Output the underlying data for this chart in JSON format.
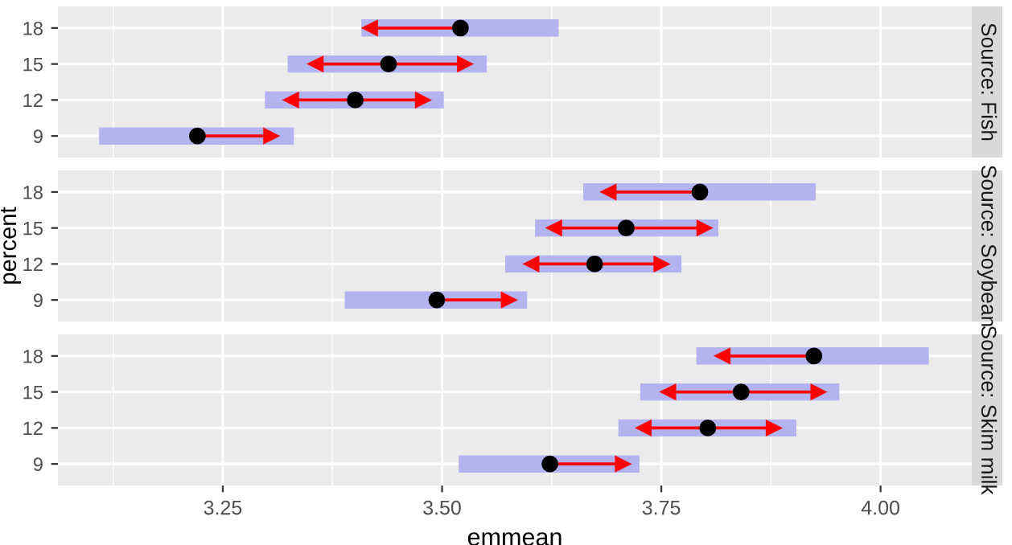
{
  "chart_data": [
    {
      "type": "bar",
      "orientation": "horizontal",
      "title": "Source: Fish",
      "categories": [
        "18",
        "15",
        "12",
        "9"
      ],
      "xlim": [
        3.062,
        4.104
      ],
      "xticks": [
        {
          "value": 3.25,
          "label": null
        },
        {
          "value": 3.5,
          "label": null
        },
        {
          "value": 3.75,
          "label": null
        },
        {
          "value": 4,
          "label": null
        }
      ],
      "grid": true,
      "tick_labels": "y",
      "series": [
        {
          "color": "#b3b3f0",
          "base": [
            3.408,
            3.324,
            3.298,
            3.109
          ],
          "values": [
            0.225,
            0.227,
            0.204,
            0.222
          ]
        },
        {
          "type": "scatter",
          "color": "#000000",
          "marker": "circle",
          "values": [
            3.521,
            3.439,
            3.401,
            3.221
          ],
          "errors": [
            [
              3.418,
              3.521
            ],
            [
              3.356,
              3.526
            ],
            [
              3.328,
              3.478
            ],
            [
              3.221,
              3.305
            ]
          ]
        }
      ]
    },
    {
      "type": "bar",
      "orientation": "horizontal",
      "title": "Source: Soybean",
      "ylabel": "percent",
      "categories": [
        "18",
        "15",
        "12",
        "9"
      ],
      "xlim": [
        3.062,
        4.104
      ],
      "xticks": [
        {
          "value": 3.25,
          "label": null
        },
        {
          "value": 3.5,
          "label": null
        },
        {
          "value": 3.75,
          "label": null
        },
        {
          "value": 4,
          "label": null
        }
      ],
      "grid": true,
      "tick_labels": "y",
      "series": [
        {
          "color": "#b3b3f0",
          "base": [
            3.661,
            3.606,
            3.572,
            3.389
          ],
          "values": [
            0.265,
            0.209,
            0.201,
            0.208
          ]
        },
        {
          "type": "scatter",
          "color": "#000000",
          "marker": "circle",
          "values": [
            3.794,
            3.71,
            3.674,
            3.494
          ],
          "errors": [
            [
              3.69,
              3.794
            ],
            [
              3.628,
              3.799
            ],
            [
              3.602,
              3.75
            ],
            [
              3.494,
              3.576
            ]
          ]
        }
      ]
    },
    {
      "type": "bar",
      "orientation": "horizontal",
      "title": "Source: Skim milk",
      "xlabel": "emmean",
      "categories": [
        "18",
        "15",
        "12",
        "9"
      ],
      "xlim": [
        3.062,
        4.104
      ],
      "xticks": [
        {
          "value": 3.25,
          "label": "3.25"
        },
        {
          "value": 3.5,
          "label": "3.50"
        },
        {
          "value": 3.75,
          "label": "3.75"
        },
        {
          "value": 4,
          "label": "4.00"
        }
      ],
      "grid": true,
      "series": [
        {
          "color": "#b3b3f0",
          "base": [
            3.79,
            3.726,
            3.701,
            3.519
          ],
          "values": [
            0.265,
            0.227,
            0.203,
            0.206
          ]
        },
        {
          "type": "scatter",
          "color": "#000000",
          "marker": "circle",
          "values": [
            3.924,
            3.841,
            3.803,
            3.623
          ],
          "errors": [
            [
              3.82,
              3.924
            ],
            [
              3.758,
              3.929
            ],
            [
              3.73,
              3.878
            ],
            [
              3.623,
              3.706
            ]
          ]
        }
      ]
    }
  ]
}
